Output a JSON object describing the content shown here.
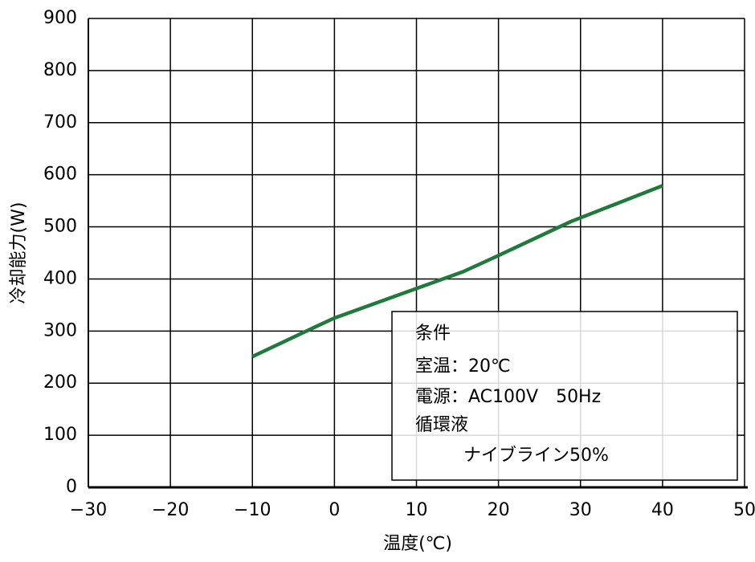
{
  "chart_data": {
    "type": "line",
    "xlabel": "温度(℃)",
    "ylabel": "冷却能力(W)",
    "x": [
      -10,
      -2.6,
      0,
      15.7,
      20,
      28.8,
      40
    ],
    "series": [
      {
        "name": "冷却能力",
        "color": "#1f7a3c",
        "values": [
          251,
          306,
          325,
          414,
          445,
          510,
          579
        ]
      }
    ],
    "xlim": [
      -30,
      50
    ],
    "xticks": [
      {
        "value": -30,
        "label": "−30"
      },
      {
        "value": -20,
        "label": "−20"
      },
      {
        "value": -10,
        "label": "−10"
      },
      0,
      10,
      20,
      30,
      40,
      50
    ],
    "ylim": [
      0,
      900
    ],
    "yticks": [
      0,
      100,
      200,
      300,
      400,
      500,
      600,
      700,
      800,
      900
    ],
    "grid": true,
    "annotation": [
      "条件",
      "室温：20℃",
      "電源：AC100V　50Hz",
      "循環液",
      "ナイブライン50%"
    ]
  }
}
